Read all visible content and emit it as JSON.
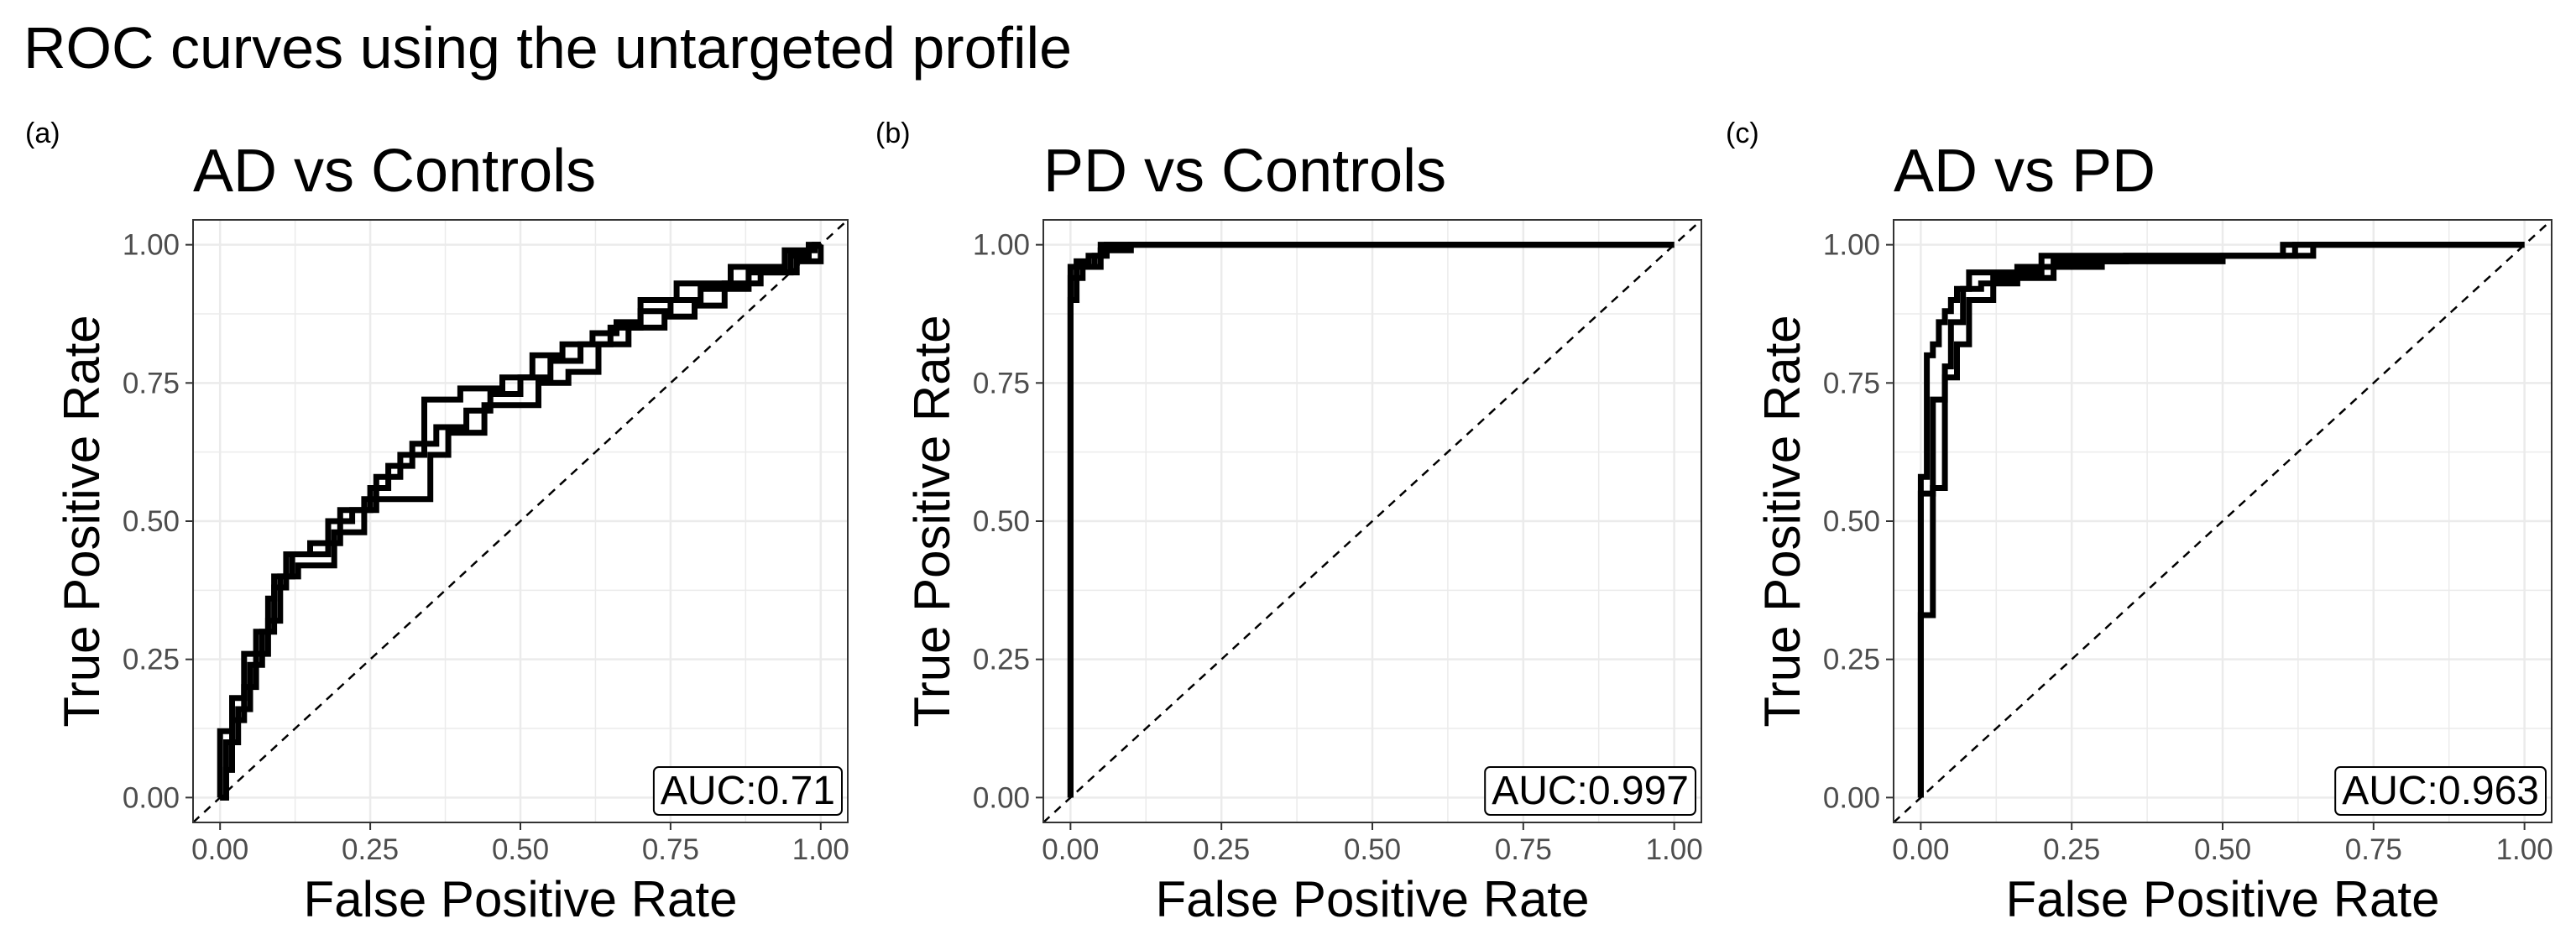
{
  "title": "ROC curves using the untargeted profile",
  "colors": {
    "curve": "#000000",
    "grid": "#ebebeb",
    "axis": "#333333",
    "tick_label": "#4d4d4d",
    "background": "#ffffff"
  },
  "chart_data": [
    {
      "type": "line",
      "panel_tag": "(a)",
      "title": "AD vs Controls",
      "xlabel": "False Positive Rate",
      "ylabel": "True Positive Rate",
      "xlim": [
        0,
        1
      ],
      "ylim": [
        0,
        1
      ],
      "ticks": [
        "0.00",
        "0.25",
        "0.50",
        "0.75",
        "1.00"
      ],
      "auc_label": "AUC:0.71",
      "diagonal": true,
      "series": [
        {
          "name": "curve-1",
          "points": [
            [
              0,
              0
            ],
            [
              0,
              0.12
            ],
            [
              0.02,
              0.12
            ],
            [
              0.02,
              0.18
            ],
            [
              0.04,
              0.18
            ],
            [
              0.04,
              0.26
            ],
            [
              0.06,
              0.26
            ],
            [
              0.06,
              0.3
            ],
            [
              0.08,
              0.3
            ],
            [
              0.08,
              0.36
            ],
            [
              0.09,
              0.36
            ],
            [
              0.09,
              0.4
            ],
            [
              0.12,
              0.4
            ],
            [
              0.12,
              0.44
            ],
            [
              0.18,
              0.44
            ],
            [
              0.18,
              0.5
            ],
            [
              0.22,
              0.5
            ],
            [
              0.22,
              0.52
            ],
            [
              0.26,
              0.52
            ],
            [
              0.26,
              0.58
            ],
            [
              0.3,
              0.58
            ],
            [
              0.3,
              0.62
            ],
            [
              0.34,
              0.62
            ],
            [
              0.34,
              0.72
            ],
            [
              0.4,
              0.72
            ],
            [
              0.4,
              0.74
            ],
            [
              0.47,
              0.74
            ],
            [
              0.47,
              0.76
            ],
            [
              0.52,
              0.76
            ],
            [
              0.52,
              0.8
            ],
            [
              0.57,
              0.8
            ],
            [
              0.57,
              0.82
            ],
            [
              0.62,
              0.82
            ],
            [
              0.62,
              0.84
            ],
            [
              0.66,
              0.84
            ],
            [
              0.66,
              0.86
            ],
            [
              0.7,
              0.86
            ],
            [
              0.7,
              0.9
            ],
            [
              0.76,
              0.9
            ],
            [
              0.76,
              0.93
            ],
            [
              0.85,
              0.93
            ],
            [
              0.85,
              0.96
            ],
            [
              0.94,
              0.96
            ],
            [
              0.94,
              0.99
            ],
            [
              0.99,
              0.99
            ],
            [
              0.99,
              1
            ],
            [
              1,
              1
            ]
          ]
        },
        {
          "name": "curve-2",
          "points": [
            [
              0,
              0
            ],
            [
              0.01,
              0
            ],
            [
              0.01,
              0.1
            ],
            [
              0.03,
              0.1
            ],
            [
              0.03,
              0.16
            ],
            [
              0.05,
              0.16
            ],
            [
              0.05,
              0.24
            ],
            [
              0.07,
              0.24
            ],
            [
              0.07,
              0.3
            ],
            [
              0.09,
              0.3
            ],
            [
              0.09,
              0.38
            ],
            [
              0.11,
              0.38
            ],
            [
              0.11,
              0.44
            ],
            [
              0.15,
              0.44
            ],
            [
              0.15,
              0.46
            ],
            [
              0.2,
              0.46
            ],
            [
              0.2,
              0.52
            ],
            [
              0.25,
              0.52
            ],
            [
              0.25,
              0.56
            ],
            [
              0.28,
              0.56
            ],
            [
              0.28,
              0.6
            ],
            [
              0.32,
              0.6
            ],
            [
              0.32,
              0.64
            ],
            [
              0.36,
              0.64
            ],
            [
              0.36,
              0.67
            ],
            [
              0.41,
              0.67
            ],
            [
              0.41,
              0.7
            ],
            [
              0.45,
              0.7
            ],
            [
              0.45,
              0.73
            ],
            [
              0.5,
              0.73
            ],
            [
              0.5,
              0.76
            ],
            [
              0.55,
              0.76
            ],
            [
              0.55,
              0.79
            ],
            [
              0.6,
              0.79
            ],
            [
              0.6,
              0.82
            ],
            [
              0.65,
              0.82
            ],
            [
              0.65,
              0.85
            ],
            [
              0.7,
              0.85
            ],
            [
              0.7,
              0.88
            ],
            [
              0.75,
              0.88
            ],
            [
              0.75,
              0.9
            ],
            [
              0.8,
              0.9
            ],
            [
              0.8,
              0.92
            ],
            [
              0.88,
              0.92
            ],
            [
              0.88,
              0.95
            ],
            [
              0.95,
              0.95
            ],
            [
              0.95,
              0.98
            ],
            [
              0.98,
              0.98
            ],
            [
              0.98,
              1
            ],
            [
              1,
              1
            ]
          ]
        },
        {
          "name": "curve-3",
          "points": [
            [
              0,
              0
            ],
            [
              0.01,
              0
            ],
            [
              0.01,
              0.05
            ],
            [
              0.02,
              0.05
            ],
            [
              0.02,
              0.14
            ],
            [
              0.04,
              0.14
            ],
            [
              0.04,
              0.2
            ],
            [
              0.06,
              0.2
            ],
            [
              0.06,
              0.26
            ],
            [
              0.08,
              0.26
            ],
            [
              0.08,
              0.32
            ],
            [
              0.1,
              0.32
            ],
            [
              0.1,
              0.4
            ],
            [
              0.13,
              0.4
            ],
            [
              0.13,
              0.42
            ],
            [
              0.19,
              0.42
            ],
            [
              0.19,
              0.48
            ],
            [
              0.24,
              0.48
            ],
            [
              0.24,
              0.54
            ],
            [
              0.35,
              0.54
            ],
            [
              0.35,
              0.62
            ],
            [
              0.38,
              0.62
            ],
            [
              0.38,
              0.66
            ],
            [
              0.44,
              0.66
            ],
            [
              0.44,
              0.71
            ],
            [
              0.53,
              0.71
            ],
            [
              0.53,
              0.75
            ],
            [
              0.58,
              0.75
            ],
            [
              0.58,
              0.77
            ],
            [
              0.63,
              0.77
            ],
            [
              0.63,
              0.82
            ],
            [
              0.68,
              0.82
            ],
            [
              0.68,
              0.85
            ],
            [
              0.74,
              0.85
            ],
            [
              0.74,
              0.87
            ],
            [
              0.79,
              0.87
            ],
            [
              0.79,
              0.89
            ],
            [
              0.84,
              0.89
            ],
            [
              0.84,
              0.93
            ],
            [
              0.9,
              0.93
            ],
            [
              0.9,
              0.95
            ],
            [
              0.96,
              0.95
            ],
            [
              0.96,
              0.97
            ],
            [
              1,
              0.97
            ],
            [
              1,
              1
            ]
          ]
        }
      ]
    },
    {
      "type": "line",
      "panel_tag": "(b)",
      "title": "PD vs Controls",
      "xlabel": "False Positive Rate",
      "ylabel": "True Positive Rate",
      "xlim": [
        0,
        1
      ],
      "ylim": [
        0,
        1
      ],
      "ticks": [
        "0.00",
        "0.25",
        "0.50",
        "0.75",
        "1.00"
      ],
      "auc_label": "AUC:0.997",
      "diagonal": true,
      "series": [
        {
          "name": "curve-1",
          "points": [
            [
              0,
              0
            ],
            [
              0,
              0.96
            ],
            [
              0.01,
              0.96
            ],
            [
              0.01,
              0.97
            ],
            [
              0.03,
              0.97
            ],
            [
              0.03,
              0.98
            ],
            [
              0.06,
              0.98
            ],
            [
              0.06,
              1
            ],
            [
              1,
              1
            ]
          ]
        },
        {
          "name": "curve-2",
          "points": [
            [
              0,
              0
            ],
            [
              0,
              0.9
            ],
            [
              0.01,
              0.9
            ],
            [
              0.01,
              0.96
            ],
            [
              0.04,
              0.96
            ],
            [
              0.04,
              0.98
            ],
            [
              0.05,
              0.98
            ],
            [
              0.05,
              1
            ],
            [
              1,
              1
            ]
          ]
        },
        {
          "name": "curve-3",
          "points": [
            [
              0,
              0
            ],
            [
              0,
              0.94
            ],
            [
              0.02,
              0.94
            ],
            [
              0.02,
              0.96
            ],
            [
              0.05,
              0.96
            ],
            [
              0.05,
              0.99
            ],
            [
              0.1,
              0.99
            ],
            [
              0.1,
              1
            ],
            [
              1,
              1
            ]
          ]
        }
      ]
    },
    {
      "type": "line",
      "panel_tag": "(c)",
      "title": "AD vs PD",
      "xlabel": "False Positive Rate",
      "ylabel": "True Positive Rate",
      "xlim": [
        0,
        1
      ],
      "ylim": [
        0,
        1
      ],
      "ticks": [
        "0.00",
        "0.25",
        "0.50",
        "0.75",
        "1.00"
      ],
      "auc_label": "AUC:0.963",
      "diagonal": true,
      "series": [
        {
          "name": "curve-1",
          "points": [
            [
              0,
              0
            ],
            [
              0,
              0.58
            ],
            [
              0.01,
              0.58
            ],
            [
              0.01,
              0.8
            ],
            [
              0.02,
              0.8
            ],
            [
              0.02,
              0.82
            ],
            [
              0.03,
              0.82
            ],
            [
              0.03,
              0.86
            ],
            [
              0.04,
              0.86
            ],
            [
              0.04,
              0.88
            ],
            [
              0.05,
              0.88
            ],
            [
              0.05,
              0.9
            ],
            [
              0.06,
              0.9
            ],
            [
              0.06,
              0.92
            ],
            [
              0.08,
              0.92
            ],
            [
              0.08,
              0.95
            ],
            [
              0.2,
              0.95
            ],
            [
              0.2,
              0.98
            ],
            [
              0.6,
              0.98
            ],
            [
              0.6,
              1
            ],
            [
              1,
              1
            ]
          ]
        },
        {
          "name": "curve-2",
          "points": [
            [
              0,
              0
            ],
            [
              0,
              0.33
            ],
            [
              0.02,
              0.33
            ],
            [
              0.02,
              0.56
            ],
            [
              0.04,
              0.56
            ],
            [
              0.04,
              0.76
            ],
            [
              0.06,
              0.76
            ],
            [
              0.06,
              0.82
            ],
            [
              0.08,
              0.82
            ],
            [
              0.08,
              0.9
            ],
            [
              0.12,
              0.9
            ],
            [
              0.12,
              0.94
            ],
            [
              0.22,
              0.94
            ],
            [
              0.22,
              0.97
            ],
            [
              0.34,
              0.97
            ],
            [
              0.34,
              0.98
            ],
            [
              0.65,
              0.98
            ],
            [
              0.65,
              1
            ],
            [
              1,
              1
            ]
          ]
        },
        {
          "name": "curve-3",
          "points": [
            [
              0,
              0
            ],
            [
              0,
              0.55
            ],
            [
              0.02,
              0.55
            ],
            [
              0.02,
              0.72
            ],
            [
              0.04,
              0.72
            ],
            [
              0.04,
              0.78
            ],
            [
              0.05,
              0.78
            ],
            [
              0.05,
              0.86
            ],
            [
              0.07,
              0.86
            ],
            [
              0.07,
              0.92
            ],
            [
              0.1,
              0.92
            ],
            [
              0.1,
              0.93
            ],
            [
              0.16,
              0.93
            ],
            [
              0.16,
              0.96
            ],
            [
              0.3,
              0.96
            ],
            [
              0.3,
              0.97
            ],
            [
              0.5,
              0.97
            ],
            [
              0.5,
              0.98
            ],
            [
              0.62,
              0.98
            ],
            [
              0.62,
              1
            ],
            [
              1,
              1
            ]
          ]
        }
      ]
    }
  ]
}
